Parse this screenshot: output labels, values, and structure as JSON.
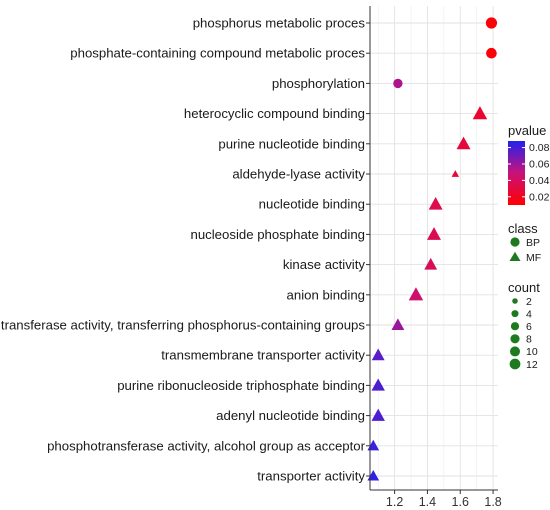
{
  "chart_data": {
    "type": "scatter",
    "xlabel": "",
    "ylabel": "",
    "xlim": [
      1.05,
      1.83
    ],
    "xticks": [
      "1.2",
      "1.4",
      "1.6",
      "1.8"
    ],
    "xtick_values": [
      1.2,
      1.4,
      1.6,
      1.8
    ],
    "grid": true,
    "legend_position": "right",
    "categories": [
      "phosphorus metabolic proces",
      "phosphate-containing compound metabolic proces",
      "phosphorylation",
      "heterocyclic compound binding",
      "purine nucleotide binding",
      "aldehyde-lyase activity",
      "nucleotide binding",
      "nucleoside phosphate binding",
      "kinase activity",
      "anion binding",
      "transferase activity, transferring phosphorus-containing groups",
      "transmembrane transporter activity",
      "purine ribonucleoside triphosphate binding",
      "adenyl nucleotide binding",
      "phosphotransferase activity, alcohol group as acceptor",
      "transporter activity"
    ],
    "points": [
      {
        "term": "phosphorus metabolic proces",
        "x": 1.79,
        "class": "BP",
        "pvalue": 0.013,
        "count": 8
      },
      {
        "term": "phosphate-containing compound metabolic proces",
        "x": 1.79,
        "class": "BP",
        "pvalue": 0.013,
        "count": 7
      },
      {
        "term": "phosphorylation",
        "x": 1.22,
        "class": "BP",
        "pvalue": 0.055,
        "count": 5
      },
      {
        "term": "heterocyclic compound binding",
        "x": 1.72,
        "class": "MF",
        "pvalue": 0.025,
        "count": 12
      },
      {
        "term": "purine nucleotide binding",
        "x": 1.62,
        "class": "MF",
        "pvalue": 0.03,
        "count": 11
      },
      {
        "term": "aldehyde-lyase activity",
        "x": 1.57,
        "class": "MF",
        "pvalue": 0.028,
        "count": 2
      },
      {
        "term": "nucleotide binding",
        "x": 1.45,
        "class": "MF",
        "pvalue": 0.035,
        "count": 11
      },
      {
        "term": "nucleoside phosphate binding",
        "x": 1.44,
        "class": "MF",
        "pvalue": 0.036,
        "count": 11
      },
      {
        "term": "kinase activity",
        "x": 1.42,
        "class": "MF",
        "pvalue": 0.038,
        "count": 9
      },
      {
        "term": "anion binding",
        "x": 1.33,
        "class": "MF",
        "pvalue": 0.045,
        "count": 12
      },
      {
        "term": "transferase activity, transferring phosphorus-containing groups",
        "x": 1.22,
        "class": "MF",
        "pvalue": 0.06,
        "count": 9
      },
      {
        "term": "transmembrane transporter activity",
        "x": 1.1,
        "class": "MF",
        "pvalue": 0.075,
        "count": 9
      },
      {
        "term": "purine ribonucleoside triphosphate binding",
        "x": 1.1,
        "class": "MF",
        "pvalue": 0.078,
        "count": 10
      },
      {
        "term": "adenyl nucleotide binding",
        "x": 1.1,
        "class": "MF",
        "pvalue": 0.078,
        "count": 10
      },
      {
        "term": "phosphotransferase activity, alcohol group as acceptor",
        "x": 1.07,
        "class": "MF",
        "pvalue": 0.083,
        "count": 7
      },
      {
        "term": "transporter activity",
        "x": 1.07,
        "class": "MF",
        "pvalue": 0.085,
        "count": 7
      }
    ]
  },
  "legend": {
    "pvalue": {
      "title": "pvalue",
      "range": [
        0.01,
        0.088
      ],
      "ticks": [
        "0.08",
        "0.06",
        "0.04",
        "0.02"
      ],
      "tick_values": [
        0.08,
        0.06,
        0.04,
        0.02
      ],
      "color_low": "#ff0000",
      "color_high": "#2222ee"
    },
    "class": {
      "title": "class",
      "items": [
        {
          "label": "BP",
          "shape": "circle"
        },
        {
          "label": "MF",
          "shape": "triangle"
        }
      ],
      "color": "#1e7a1e"
    },
    "count": {
      "title": "count",
      "items": [
        {
          "label": "2",
          "value": 2
        },
        {
          "label": "4",
          "value": 4
        },
        {
          "label": "6",
          "value": 6
        },
        {
          "label": "8",
          "value": 8
        },
        {
          "label": "10",
          "value": 10
        },
        {
          "label": "12",
          "value": 12
        }
      ],
      "color": "#1e7a1e"
    }
  }
}
